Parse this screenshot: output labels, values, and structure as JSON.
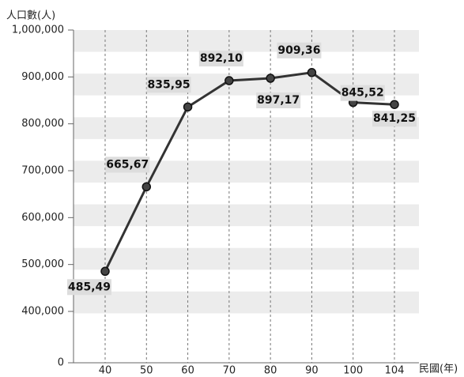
{
  "chart_data": {
    "type": "line",
    "y_label": "人口數(人)",
    "x_label": "民國(年)",
    "categories": [
      "40",
      "50",
      "60",
      "70",
      "80",
      "90",
      "100",
      "104"
    ],
    "series": [
      {
        "name": "人口數",
        "color": "#333333",
        "values": [
          485490,
          665670,
          835950,
          892100,
          897170,
          909360,
          845520,
          841250
        ],
        "value_labels": [
          "485,49",
          "665,67",
          "835,95",
          "892,10",
          "897,17",
          "909,36",
          "845,52",
          "841,25"
        ]
      }
    ],
    "ylim": [
      0,
      1000000
    ],
    "yticks": [
      0,
      {
        "value": 400000,
        "label": "400,000"
      },
      {
        "value": 500000,
        "label": "500,000"
      },
      {
        "value": 600000,
        "label": "600,000"
      },
      {
        "value": 700000,
        "label": "700,000"
      },
      {
        "value": 800000,
        "label": "800,000"
      },
      {
        "value": 900000,
        "label": "900,000"
      },
      {
        "value": 1000000,
        "label": "1,000,000"
      }
    ],
    "axis_break": true,
    "grid": true
  }
}
